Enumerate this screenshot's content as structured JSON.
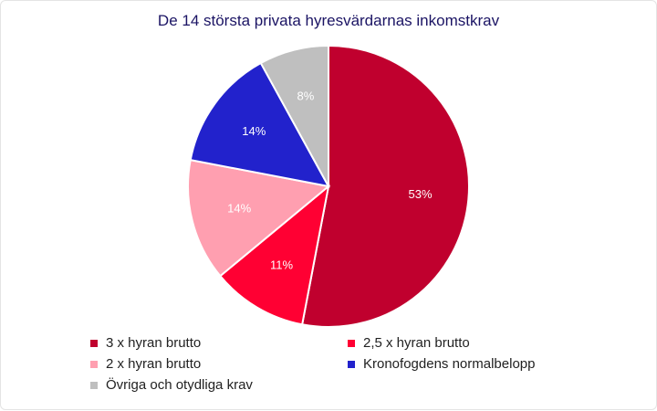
{
  "chart_data": {
    "type": "pie",
    "title": "De 14 största privata hyresvärdarnas inkomstkrav",
    "slices": [
      {
        "name": "3 x hyran brutto",
        "value": 53,
        "label": "53%",
        "color": "#c0002e"
      },
      {
        "name": "2,5 x hyran brutto",
        "value": 11,
        "label": "11%",
        "color": "#ff0033"
      },
      {
        "name": "2 x hyran brutto",
        "value": 14,
        "label": "14%",
        "color": "#ff9fb0"
      },
      {
        "name": "Kronofogdens normalbelopp",
        "value": 14,
        "label": "14%",
        "color": "#2222cc"
      },
      {
        "name": "Övriga och otydliga krav",
        "value": 8,
        "label": "8%",
        "color": "#bfbfbf"
      }
    ],
    "legend_position": "bottom"
  }
}
